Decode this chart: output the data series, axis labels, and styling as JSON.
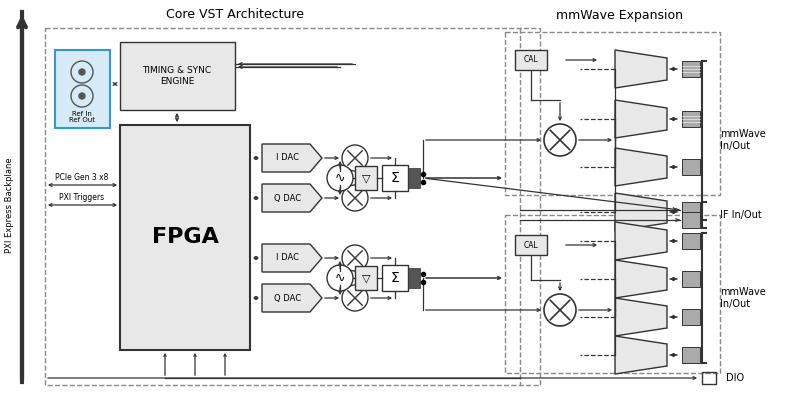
{
  "bg_color": "#ffffff",
  "lc": "#333333",
  "tc": "#000000",
  "label_core": "Core VST Architecture",
  "label_mmwave": "mmWave Expansion",
  "label_pxi": "PXI Express Backplane",
  "label_fpga": "FPGA",
  "label_timing": "TIMING & SYNC\nENGINE",
  "label_ref": "Ref In\nRef Out",
  "label_pcie": "PCIe Gen 3 x8",
  "label_pxi_trig": "PXI Triggers",
  "label_cal": "CAL",
  "dac_labels": [
    "I DAC",
    "Q DAC",
    "I DAC",
    "Q DAC"
  ],
  "right_labels": [
    "mmWave\nIn/Out",
    "IF In/Out",
    "mmWave\nIn/Out",
    "DIO"
  ],
  "ref_fill": "#d6eaf8",
  "ref_edge": "#3399cc",
  "gray_fill": "#e8e8e8",
  "white_fill": "#ffffff",
  "port_fill": "#aaaaaa"
}
